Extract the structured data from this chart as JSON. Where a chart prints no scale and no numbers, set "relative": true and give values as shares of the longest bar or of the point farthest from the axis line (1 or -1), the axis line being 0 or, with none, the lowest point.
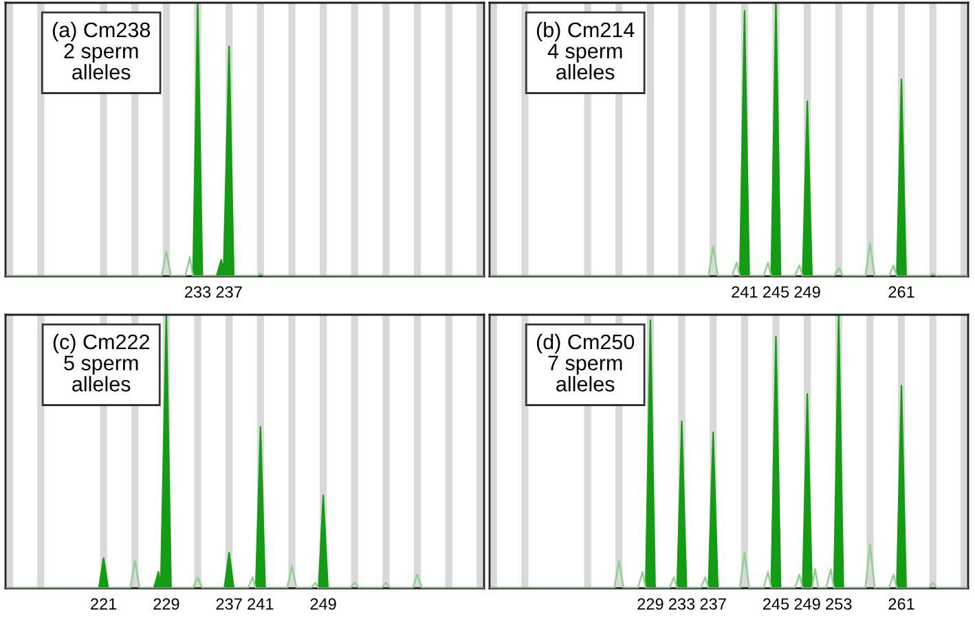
{
  "chart_data": [
    {
      "type": "area",
      "title": "(a) Cm238\n2 sperm\nalleles",
      "relative": true,
      "tick_labels": "x",
      "xlim": [
        208.5,
        269.5
      ],
      "xticks": [
        233,
        237
      ],
      "series": [
        {
          "color": "#149c14",
          "x": [
            232.4,
            233,
            233.6,
            235.4,
            236,
            236.3,
            237,
            237.6
          ],
          "values": [
            0,
            1,
            0,
            0,
            0.06,
            0.02,
            0.84,
            0
          ]
        },
        {
          "type": "line",
          "color": "#8fd08f",
          "x": [
            208.5,
            228.4,
            229,
            229.6,
            231.4,
            232,
            232.4,
            240.4,
            241,
            241.6,
            269.5
          ],
          "values": [
            0,
            0,
            0.09,
            0,
            0,
            0.07,
            0,
            0,
            0.01,
            0,
            0
          ]
        }
      ],
      "bands": [
        {
          "axis": "x",
          "from": 208.55,
          "to": 209.45,
          "color": "#d9d9d9"
        },
        {
          "axis": "x",
          "from": 212.55,
          "to": 213.45,
          "color": "#d9d9d9"
        },
        {
          "axis": "x",
          "from": 220.55,
          "to": 221.45,
          "color": "#d9d9d9"
        },
        {
          "axis": "x",
          "from": 224.55,
          "to": 225.45,
          "color": "#d9d9d9"
        },
        {
          "axis": "x",
          "from": 228.55,
          "to": 229.45,
          "color": "#d9d9d9"
        },
        {
          "axis": "x",
          "from": 232.55,
          "to": 233.45,
          "color": "#d9d9d9"
        },
        {
          "axis": "x",
          "from": 236.55,
          "to": 237.45,
          "color": "#d9d9d9"
        },
        {
          "axis": "x",
          "from": 240.55,
          "to": 241.45,
          "color": "#d9d9d9"
        },
        {
          "axis": "x",
          "from": 244.55,
          "to": 245.45,
          "color": "#d9d9d9"
        },
        {
          "axis": "x",
          "from": 248.55,
          "to": 249.45,
          "color": "#d9d9d9"
        },
        {
          "axis": "x",
          "from": 252.55,
          "to": 253.45,
          "color": "#d9d9d9"
        },
        {
          "axis": "x",
          "from": 256.55,
          "to": 257.45,
          "color": "#d9d9d9"
        },
        {
          "axis": "x",
          "from": 260.55,
          "to": 261.45,
          "color": "#d9d9d9"
        },
        {
          "axis": "x",
          "from": 264.55,
          "to": 265.45,
          "color": "#d9d9d9"
        },
        {
          "axis": "x",
          "from": 268.55,
          "to": 269.45,
          "color": "#d9d9d9"
        }
      ]
    },
    {
      "type": "area",
      "title": "(b) Cm214\n4 sperm\nalleles",
      "relative": true,
      "tick_labels": "x",
      "xlim": [
        208.5,
        269.5
      ],
      "xticks": [
        241,
        245,
        249,
        261
      ],
      "series": [
        {
          "color": "#149c14",
          "x": [
            240.4,
            241,
            241.6,
            244.4,
            245,
            245.6,
            248.4,
            249,
            249.6,
            260.4,
            261,
            261.6
          ],
          "values": [
            0,
            0.97,
            0,
            0,
            1,
            0,
            0,
            0.64,
            0,
            0,
            0.72,
            0
          ]
        },
        {
          "type": "line",
          "color": "#8fd08f",
          "x": [
            208.5,
            236.4,
            237,
            237.6,
            239.4,
            240,
            240.4,
            243.4,
            244,
            244.4,
            247.4,
            248,
            248.4,
            252.4,
            253,
            253.6,
            256.4,
            257,
            257.6,
            259.4,
            260,
            260.4,
            264.4,
            265,
            265.6,
            269.5
          ],
          "values": [
            0,
            0,
            0.11,
            0,
            0,
            0.05,
            0,
            0,
            0.05,
            0,
            0,
            0.04,
            0,
            0,
            0.03,
            0,
            0,
            0.12,
            0,
            0,
            0.04,
            0,
            0,
            0.01,
            0,
            0
          ]
        }
      ],
      "bands": [
        {
          "axis": "x",
          "from": 208.55,
          "to": 209.45,
          "color": "#d9d9d9"
        },
        {
          "axis": "x",
          "from": 212.55,
          "to": 213.45,
          "color": "#d9d9d9"
        },
        {
          "axis": "x",
          "from": 220.55,
          "to": 221.45,
          "color": "#d9d9d9"
        },
        {
          "axis": "x",
          "from": 224.55,
          "to": 225.45,
          "color": "#d9d9d9"
        },
        {
          "axis": "x",
          "from": 228.55,
          "to": 229.45,
          "color": "#d9d9d9"
        },
        {
          "axis": "x",
          "from": 232.55,
          "to": 233.45,
          "color": "#d9d9d9"
        },
        {
          "axis": "x",
          "from": 236.55,
          "to": 237.45,
          "color": "#d9d9d9"
        },
        {
          "axis": "x",
          "from": 240.55,
          "to": 241.45,
          "color": "#d9d9d9"
        },
        {
          "axis": "x",
          "from": 244.55,
          "to": 245.45,
          "color": "#d9d9d9"
        },
        {
          "axis": "x",
          "from": 248.55,
          "to": 249.45,
          "color": "#d9d9d9"
        },
        {
          "axis": "x",
          "from": 252.55,
          "to": 253.45,
          "color": "#d9d9d9"
        },
        {
          "axis": "x",
          "from": 256.55,
          "to": 257.45,
          "color": "#d9d9d9"
        },
        {
          "axis": "x",
          "from": 260.55,
          "to": 261.45,
          "color": "#d9d9d9"
        },
        {
          "axis": "x",
          "from": 264.55,
          "to": 265.45,
          "color": "#d9d9d9"
        },
        {
          "axis": "x",
          "from": 268.55,
          "to": 269.45,
          "color": "#d9d9d9"
        }
      ]
    },
    {
      "type": "area",
      "title": "(c) Cm222\n5 sperm\nalleles",
      "relative": true,
      "tick_labels": "x",
      "xlim": [
        208.5,
        269.5
      ],
      "xticks": [
        221,
        229,
        237,
        241,
        249
      ],
      "series": [
        {
          "color": "#149c14",
          "x": [
            220.4,
            221,
            221.6,
            227.4,
            228,
            228.3,
            229,
            229.6,
            236.4,
            237,
            237.6,
            240.4,
            241,
            241.6,
            248.4,
            249,
            249.6
          ],
          "values": [
            0,
            0.11,
            0,
            0,
            0.06,
            0.02,
            1,
            0,
            0,
            0.13,
            0,
            0,
            0.59,
            0,
            0,
            0.34,
            0
          ]
        },
        {
          "type": "line",
          "color": "#8fd08f",
          "x": [
            208.5,
            224.4,
            225,
            225.6,
            232.4,
            233,
            233.6,
            239.4,
            240,
            240.4,
            244.4,
            245,
            245.6,
            247.4,
            248,
            248.4,
            252.4,
            253,
            253.6,
            256.4,
            257,
            257.6,
            260.4,
            261,
            261.6,
            269.5
          ],
          "values": [
            0,
            0,
            0.1,
            0,
            0,
            0.04,
            0,
            0,
            0.04,
            0,
            0,
            0.08,
            0,
            0,
            0.02,
            0,
            0,
            0.02,
            0,
            0,
            0.02,
            0,
            0,
            0.05,
            0,
            0
          ]
        }
      ],
      "bands": [
        {
          "axis": "x",
          "from": 208.55,
          "to": 209.45,
          "color": "#d9d9d9"
        },
        {
          "axis": "x",
          "from": 212.55,
          "to": 213.45,
          "color": "#d9d9d9"
        },
        {
          "axis": "x",
          "from": 220.55,
          "to": 221.45,
          "color": "#d9d9d9"
        },
        {
          "axis": "x",
          "from": 224.55,
          "to": 225.45,
          "color": "#d9d9d9"
        },
        {
          "axis": "x",
          "from": 228.55,
          "to": 229.45,
          "color": "#d9d9d9"
        },
        {
          "axis": "x",
          "from": 232.55,
          "to": 233.45,
          "color": "#d9d9d9"
        },
        {
          "axis": "x",
          "from": 236.55,
          "to": 237.45,
          "color": "#d9d9d9"
        },
        {
          "axis": "x",
          "from": 240.55,
          "to": 241.45,
          "color": "#d9d9d9"
        },
        {
          "axis": "x",
          "from": 244.55,
          "to": 245.45,
          "color": "#d9d9d9"
        },
        {
          "axis": "x",
          "from": 248.55,
          "to": 249.45,
          "color": "#d9d9d9"
        },
        {
          "axis": "x",
          "from": 252.55,
          "to": 253.45,
          "color": "#d9d9d9"
        },
        {
          "axis": "x",
          "from": 256.55,
          "to": 257.45,
          "color": "#d9d9d9"
        },
        {
          "axis": "x",
          "from": 260.55,
          "to": 261.45,
          "color": "#d9d9d9"
        },
        {
          "axis": "x",
          "from": 264.55,
          "to": 265.45,
          "color": "#d9d9d9"
        },
        {
          "axis": "x",
          "from": 268.55,
          "to": 269.45,
          "color": "#d9d9d9"
        }
      ]
    },
    {
      "type": "area",
      "title": "(d) Cm250\n7 sperm\nalleles",
      "relative": true,
      "tick_labels": "x",
      "xlim": [
        208.5,
        269.5
      ],
      "xticks": [
        229,
        233,
        237,
        245,
        249,
        253,
        261
      ],
      "series": [
        {
          "color": "#149c14",
          "x": [
            228.4,
            229,
            229.6,
            232.4,
            233,
            233.6,
            236.4,
            237,
            237.6,
            244.4,
            245,
            245.6,
            248.4,
            249,
            249.6,
            252.4,
            253,
            253.6,
            260.4,
            261,
            261.6
          ],
          "values": [
            0,
            0.98,
            0,
            0,
            0.61,
            0,
            0,
            0.57,
            0,
            0,
            0.92,
            0,
            0,
            0.71,
            0,
            0,
            1,
            0,
            0,
            0.74,
            0
          ]
        },
        {
          "type": "line",
          "color": "#8fd08f",
          "x": [
            208.5,
            224.4,
            225,
            225.6,
            227.4,
            228,
            228.4,
            231.4,
            232,
            232.4,
            235.4,
            236,
            236.4,
            240.4,
            241,
            241.6,
            243.4,
            244,
            244.4,
            247.4,
            248,
            248.4,
            249.6,
            250,
            250.4,
            251.4,
            252,
            252.4,
            256.4,
            257,
            257.6,
            259.4,
            260,
            260.4,
            264.4,
            265,
            265.6,
            269.5
          ],
          "values": [
            0,
            0,
            0.1,
            0,
            0,
            0.06,
            0,
            0,
            0.04,
            0,
            0,
            0.04,
            0,
            0,
            0.13,
            0,
            0,
            0.06,
            0,
            0,
            0.05,
            0,
            0,
            0.07,
            0,
            0,
            0.07,
            0,
            0,
            0.16,
            0,
            0,
            0.05,
            0,
            0,
            0.02,
            0,
            0
          ]
        }
      ],
      "bands": [
        {
          "axis": "x",
          "from": 208.55,
          "to": 209.45,
          "color": "#d9d9d9"
        },
        {
          "axis": "x",
          "from": 212.55,
          "to": 213.45,
          "color": "#d9d9d9"
        },
        {
          "axis": "x",
          "from": 220.55,
          "to": 221.45,
          "color": "#d9d9d9"
        },
        {
          "axis": "x",
          "from": 224.55,
          "to": 225.45,
          "color": "#d9d9d9"
        },
        {
          "axis": "x",
          "from": 228.55,
          "to": 229.45,
          "color": "#d9d9d9"
        },
        {
          "axis": "x",
          "from": 232.55,
          "to": 233.45,
          "color": "#d9d9d9"
        },
        {
          "axis": "x",
          "from": 236.55,
          "to": 237.45,
          "color": "#d9d9d9"
        },
        {
          "axis": "x",
          "from": 240.55,
          "to": 241.45,
          "color": "#d9d9d9"
        },
        {
          "axis": "x",
          "from": 244.55,
          "to": 245.45,
          "color": "#d9d9d9"
        },
        {
          "axis": "x",
          "from": 248.55,
          "to": 249.45,
          "color": "#d9d9d9"
        },
        {
          "axis": "x",
          "from": 252.55,
          "to": 253.45,
          "color": "#d9d9d9"
        },
        {
          "axis": "x",
          "from": 256.55,
          "to": 257.45,
          "color": "#d9d9d9"
        },
        {
          "axis": "x",
          "from": 260.55,
          "to": 261.45,
          "color": "#d9d9d9"
        },
        {
          "axis": "x",
          "from": 264.55,
          "to": 265.45,
          "color": "#d9d9d9"
        },
        {
          "axis": "x",
          "from": 268.55,
          "to": 269.45,
          "color": "#d9d9d9"
        }
      ]
    }
  ]
}
